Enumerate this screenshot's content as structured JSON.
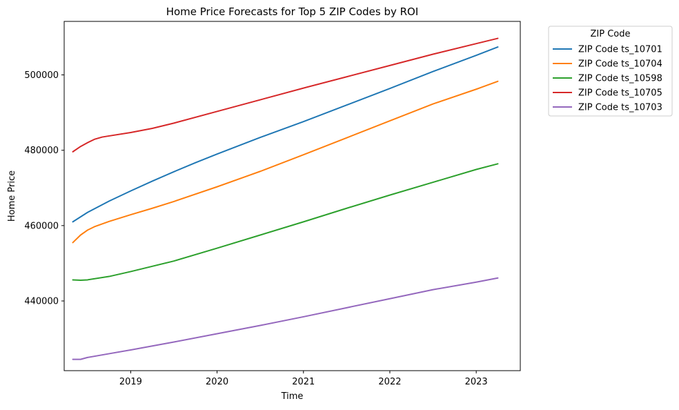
{
  "chart_data": {
    "type": "line",
    "title": "Home Price Forecasts for Top 5 ZIP Codes by ROI",
    "xlabel": "Time",
    "ylabel": "Home Price",
    "xlim": [
      2018.23,
      2023.51
    ],
    "ylim": [
      421500,
      514200
    ],
    "x_ticks": [
      2019,
      2020,
      2021,
      2022,
      2023
    ],
    "y_ticks": [
      440000,
      460000,
      480000,
      500000
    ],
    "grid": false,
    "legend": {
      "title": "ZIP Code",
      "position": "outside upper right"
    },
    "series": [
      {
        "name": "ZIP Code ts_10701",
        "color": "#1f77b4",
        "points": [
          [
            2018.33,
            461000
          ],
          [
            2018.5,
            463500
          ],
          [
            2018.75,
            466500
          ],
          [
            2019.0,
            469200
          ],
          [
            2019.25,
            471800
          ],
          [
            2019.5,
            474300
          ],
          [
            2019.75,
            476700
          ],
          [
            2020.0,
            479000
          ],
          [
            2020.5,
            483400
          ],
          [
            2021.0,
            487600
          ],
          [
            2021.5,
            492000
          ],
          [
            2022.0,
            496400
          ],
          [
            2022.5,
            500900
          ],
          [
            2023.0,
            505200
          ],
          [
            2023.25,
            507400
          ]
        ]
      },
      {
        "name": "ZIP Code ts_10704",
        "color": "#ff7f0e",
        "points": [
          [
            2018.33,
            455500
          ],
          [
            2018.42,
            457500
          ],
          [
            2018.5,
            458800
          ],
          [
            2018.58,
            459700
          ],
          [
            2018.75,
            461100
          ],
          [
            2019.0,
            462900
          ],
          [
            2019.25,
            464600
          ],
          [
            2019.5,
            466400
          ],
          [
            2020.0,
            470300
          ],
          [
            2020.5,
            474400
          ],
          [
            2021.0,
            478800
          ],
          [
            2021.5,
            483300
          ],
          [
            2022.0,
            487800
          ],
          [
            2022.5,
            492300
          ],
          [
            2023.0,
            496200
          ],
          [
            2023.25,
            498300
          ]
        ]
      },
      {
        "name": "ZIP Code ts_10598",
        "color": "#2ca02c",
        "points": [
          [
            2018.33,
            445600
          ],
          [
            2018.42,
            445500
          ],
          [
            2018.5,
            445600
          ],
          [
            2018.75,
            446500
          ],
          [
            2019.0,
            447800
          ],
          [
            2019.25,
            449200
          ],
          [
            2019.5,
            450600
          ],
          [
            2020.0,
            454000
          ],
          [
            2020.5,
            457500
          ],
          [
            2021.0,
            461000
          ],
          [
            2021.5,
            464600
          ],
          [
            2022.0,
            468100
          ],
          [
            2022.5,
            471500
          ],
          [
            2023.0,
            474900
          ],
          [
            2023.25,
            476400
          ]
        ]
      },
      {
        "name": "ZIP Code ts_10705",
        "color": "#d62728",
        "points": [
          [
            2018.33,
            479600
          ],
          [
            2018.42,
            481000
          ],
          [
            2018.5,
            482000
          ],
          [
            2018.58,
            482900
          ],
          [
            2018.67,
            483500
          ],
          [
            2018.75,
            483800
          ],
          [
            2019.0,
            484700
          ],
          [
            2019.25,
            485800
          ],
          [
            2019.5,
            487200
          ],
          [
            2020.0,
            490300
          ],
          [
            2020.5,
            493400
          ],
          [
            2021.0,
            496500
          ],
          [
            2021.5,
            499500
          ],
          [
            2022.0,
            502500
          ],
          [
            2022.5,
            505500
          ],
          [
            2023.0,
            508300
          ],
          [
            2023.25,
            509700
          ]
        ]
      },
      {
        "name": "ZIP Code ts_10703",
        "color": "#9467bd",
        "points": [
          [
            2018.33,
            424500
          ],
          [
            2018.42,
            424500
          ],
          [
            2018.5,
            425000
          ],
          [
            2018.75,
            426000
          ],
          [
            2019.0,
            427000
          ],
          [
            2019.5,
            429100
          ],
          [
            2020.0,
            431300
          ],
          [
            2020.5,
            433500
          ],
          [
            2021.0,
            435800
          ],
          [
            2021.5,
            438200
          ],
          [
            2022.0,
            440600
          ],
          [
            2022.5,
            443000
          ],
          [
            2023.0,
            445000
          ],
          [
            2023.25,
            446100
          ]
        ]
      }
    ]
  }
}
